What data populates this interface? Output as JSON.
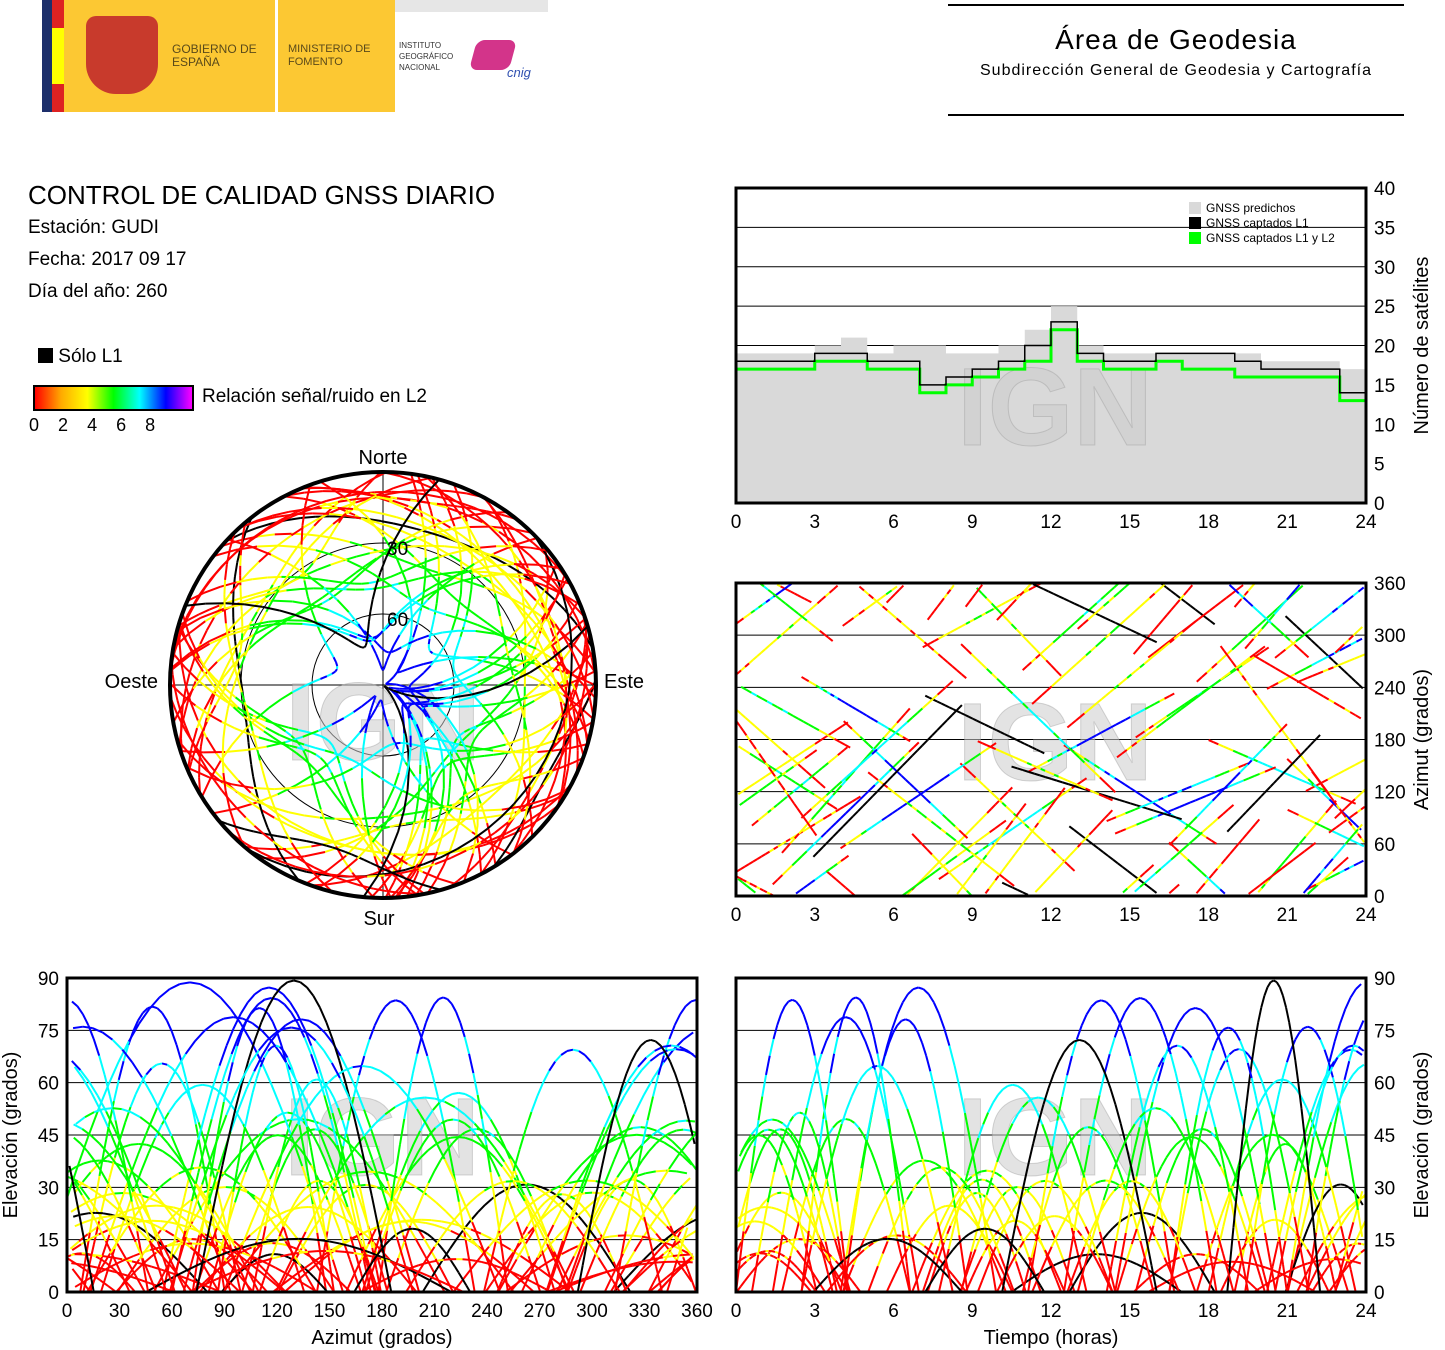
{
  "header": {
    "logo": {
      "gobierno": "GOBIERNO DE ESPAÑA",
      "ministerio": "MINISTERIO DE FOMENTO",
      "instituto": "INSTITUTO GEOGRÁFICO NACIONAL",
      "cnig": "cnig"
    },
    "area_title": "Área de Geodesia",
    "area_subtitle": "Subdirección General de Geodesia y Cartografía"
  },
  "info": {
    "title": "CONTROL DE CALIDAD GNSS DIARIO",
    "station": "Estación: GUDI",
    "date": "Fecha: 2017 09 17",
    "doy": "Día del año: 260"
  },
  "legend": {
    "solo_l1": "Sólo L1",
    "snr_label": "Relación señal/ruido en L2",
    "snr_ticks": [
      "0",
      "2",
      "4",
      "6",
      "8"
    ]
  },
  "watermark": "IGN",
  "colors": {
    "predicted": "#d9d9d9",
    "l1": "#000000",
    "l1l2": "#00ff00",
    "snr": [
      "#ff0000",
      "#ffff00",
      "#00ff00",
      "#00ffff",
      "#0000ff",
      "#ff00ff"
    ]
  },
  "chart_data": [
    {
      "type": "line",
      "id": "satellites",
      "ylabel": "Número de satélites",
      "xlim": [
        0,
        24
      ],
      "ylim": [
        0,
        40
      ],
      "xticks": [
        "0",
        "3",
        "6",
        "9",
        "12",
        "15",
        "18",
        "21",
        "24"
      ],
      "yticks": [
        "0",
        "5",
        "10",
        "15",
        "20",
        "25",
        "30",
        "35",
        "40"
      ],
      "legend": [
        "GNSS predichos",
        "GNSS captados L1",
        "GNSS captados L1 y L2"
      ],
      "legend_position": "top-right",
      "x": [
        0,
        1,
        2,
        3,
        4,
        5,
        6,
        7,
        8,
        9,
        10,
        11,
        12,
        13,
        14,
        15,
        16,
        17,
        18,
        19,
        20,
        21,
        22,
        23,
        24
      ],
      "series": [
        {
          "name": "GNSS predichos",
          "values": [
            19,
            19,
            19,
            20,
            21,
            19,
            20,
            20,
            19,
            19,
            20,
            22,
            25,
            20,
            19,
            19,
            19,
            19,
            19,
            19,
            18,
            18,
            18,
            17,
            18
          ]
        },
        {
          "name": "GNSS captados L1",
          "values": [
            18,
            18,
            18,
            19,
            19,
            18,
            18,
            15,
            16,
            17,
            18,
            20,
            23,
            19,
            18,
            18,
            19,
            19,
            19,
            18,
            17,
            17,
            17,
            14,
            17
          ]
        },
        {
          "name": "GNSS captados L1 y L2",
          "values": [
            17,
            17,
            17,
            18,
            18,
            17,
            17,
            14,
            15,
            16,
            17,
            18,
            22,
            18,
            17,
            17,
            18,
            17,
            17,
            16,
            16,
            16,
            16,
            13,
            16
          ]
        }
      ]
    },
    {
      "type": "scatter",
      "id": "azimuth-time",
      "ylabel": "Azimut (grados)",
      "xlim": [
        0,
        24
      ],
      "ylim": [
        0,
        360
      ],
      "xticks": [
        "0",
        "3",
        "6",
        "9",
        "12",
        "15",
        "18",
        "21",
        "24"
      ],
      "yticks": [
        "0",
        "60",
        "120",
        "180",
        "240",
        "300",
        "360"
      ]
    },
    {
      "type": "scatter",
      "id": "elevation-azimuth",
      "xlabel": "Azimut (grados)",
      "ylabel": "Elevación (grados)",
      "xlim": [
        0,
        360
      ],
      "ylim": [
        0,
        90
      ],
      "xticks": [
        "0",
        "30",
        "60",
        "90",
        "120",
        "150",
        "180",
        "210",
        "240",
        "270",
        "300",
        "330",
        "360"
      ],
      "yticks": [
        "0",
        "15",
        "30",
        "45",
        "60",
        "75",
        "90"
      ]
    },
    {
      "type": "scatter",
      "id": "elevation-time",
      "xlabel": "Tiempo (horas)",
      "ylabel": "Elevación (grados)",
      "xlim": [
        0,
        24
      ],
      "ylim": [
        0,
        90
      ],
      "xticks": [
        "0",
        "3",
        "6",
        "9",
        "12",
        "15",
        "18",
        "21",
        "24"
      ],
      "yticks": [
        "0",
        "15",
        "30",
        "45",
        "60",
        "75",
        "90"
      ]
    },
    {
      "type": "scatter",
      "id": "skyplot",
      "labels": {
        "north": "Norte",
        "south": "Sur",
        "west": "Oeste",
        "east": "Este"
      },
      "rings": [
        "30",
        "60"
      ]
    }
  ]
}
